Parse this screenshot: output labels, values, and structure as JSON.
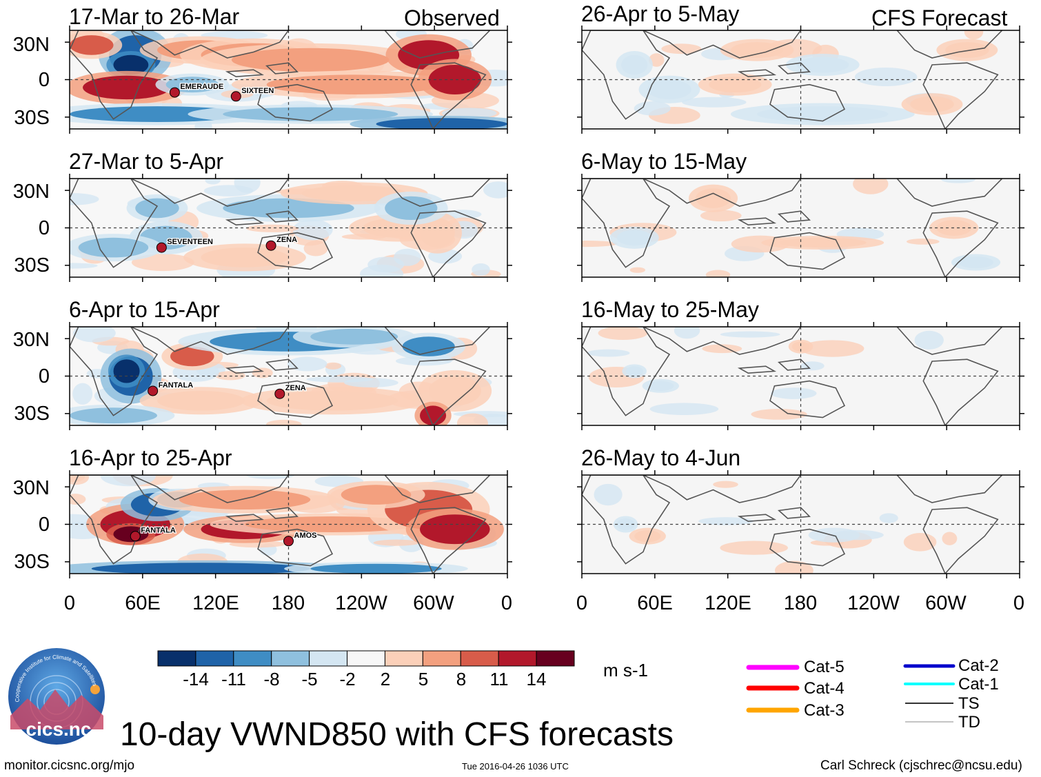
{
  "header": {
    "left_label": "Observed",
    "right_label": "CFS Forecast"
  },
  "observed_panels": [
    {
      "title": "17-Mar to 26-Mar",
      "storms": [
        "EMERAUDE",
        "SIXTEEN"
      ]
    },
    {
      "title": "27-Mar to 5-Apr",
      "storms": [
        "SEVENTEEN",
        "ZENA"
      ]
    },
    {
      "title": "6-Apr to 15-Apr",
      "storms": [
        "FANTALA",
        "ZENA"
      ]
    },
    {
      "title": "16-Apr to 25-Apr",
      "storms": [
        "FANTALA",
        "AMOS"
      ]
    }
  ],
  "forecast_panels": [
    {
      "title": "26-Apr to 5-May"
    },
    {
      "title": "6-May to 15-May"
    },
    {
      "title": "16-May to 25-May"
    },
    {
      "title": "26-May to 4-Jun"
    }
  ],
  "y_axis_labels": [
    "30N",
    "0",
    "30S"
  ],
  "x_axis_labels": [
    "0",
    "60E",
    "120E",
    "180",
    "120W",
    "60W",
    "0"
  ],
  "colorbar": {
    "unit": "m s-1",
    "tick_labels": [
      "-14",
      "-11",
      "-8",
      "-5",
      "-2",
      "2",
      "5",
      "8",
      "11",
      "14"
    ],
    "colors": [
      "#08306b",
      "#1f63a8",
      "#3f8dc4",
      "#8fc0de",
      "#d4e6f2",
      "#f7f7f7",
      "#fbd0b9",
      "#f3a07f",
      "#d85c4a",
      "#b2182b",
      "#67001f"
    ]
  },
  "legend": [
    {
      "label": "Cat-5",
      "color": "#ff00ff"
    },
    {
      "label": "Cat-4",
      "color": "#ff0000"
    },
    {
      "label": "Cat-3",
      "color": "#ffa500"
    },
    {
      "label": "Cat-2",
      "color": "#0000cc"
    },
    {
      "label": "Cat-1",
      "color": "#00ffff"
    },
    {
      "label": "TS",
      "color": "#333333"
    },
    {
      "label": "TD",
      "color": "#888888"
    }
  ],
  "title": "10-day VWND850 with CFS forecasts",
  "logo": {
    "text": "cics.nc",
    "arc_text": "Cooperative Institute for Climate and Satellites"
  },
  "footer": {
    "left": "monitor.cicsnc.org/mjo",
    "center": "Tue 2016-04-26 1036 UTC",
    "right": "Carl Schreck (cjschrec@ncsu.edu)"
  }
}
